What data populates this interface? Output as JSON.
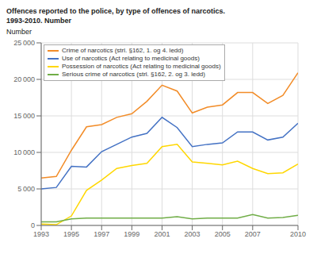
{
  "chart_data": {
    "type": "line",
    "title": "Offences reported to the police, by type of offences of narcotics.",
    "subtitle": "1993-2010. Number",
    "ylabel": "Number",
    "x": [
      1993,
      1994,
      1995,
      1996,
      1997,
      1998,
      1999,
      2000,
      2001,
      2002,
      2003,
      2004,
      2005,
      2006,
      2007,
      2008,
      2009,
      2010
    ],
    "series": [
      {
        "name": "Crime of narcotics (strl. §162, 1. og 4. ledd)",
        "color": "#F28C28",
        "values": [
          6500,
          6700,
          10300,
          13500,
          13800,
          14800,
          15300,
          17000,
          19200,
          18400,
          15400,
          16200,
          16500,
          18200,
          18200,
          16700,
          17800,
          20900
        ]
      },
      {
        "name": "Use of narcotics (Act relating to medicinal goods)",
        "color": "#4472C4",
        "values": [
          5000,
          5200,
          8100,
          8000,
          10100,
          11100,
          12100,
          12600,
          14800,
          13400,
          10800,
          11100,
          11300,
          12800,
          12800,
          11700,
          12100,
          14000
        ]
      },
      {
        "name": "Possession of narcotics (Act relating to medicinal goods)",
        "color": "#FFD700",
        "values": [
          200,
          100,
          1300,
          4800,
          6200,
          7800,
          8200,
          8500,
          10800,
          11100,
          8700,
          8500,
          8300,
          8800,
          7800,
          7100,
          7200,
          8400
        ]
      },
      {
        "name": "Serious crime of narcotics (strl. §162, 2. og 3. ledd)",
        "color": "#70AD47",
        "values": [
          500,
          500,
          900,
          1000,
          1000,
          1000,
          1000,
          1000,
          1000,
          1200,
          900,
          1000,
          1000,
          1000,
          1500,
          1000,
          1100,
          1400
        ]
      }
    ],
    "xlim": [
      1993,
      2010
    ],
    "xticks": [
      1993,
      1995,
      1997,
      1999,
      2001,
      2003,
      2005,
      2007,
      2010
    ],
    "ylim": [
      0,
      25000
    ],
    "yticks": [
      0,
      {
        "value": 5000,
        "label": "5 000"
      },
      {
        "value": 10000,
        "label": "10 000"
      },
      {
        "value": 15000,
        "label": "15 000"
      },
      {
        "value": 20000,
        "label": "20 000"
      },
      {
        "value": 25000,
        "label": "25 000"
      }
    ],
    "grid": true,
    "legend": "upper left"
  }
}
